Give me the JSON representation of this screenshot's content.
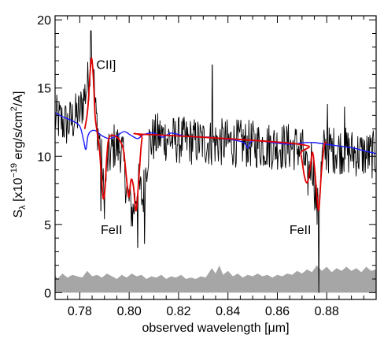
{
  "chart_data": {
    "type": "line",
    "xlabel": "observed wavelength [μm]",
    "ylabel": {
      "prefix": "S",
      "sub": "λ",
      "mid1": " [x10",
      "sup1": "−19",
      "mid2": " erg/s/cm",
      "sup2": "2",
      "suffix": "/A]"
    },
    "xlim": [
      0.77,
      0.9
    ],
    "ylim": [
      -0.5,
      20.3
    ],
    "x_ticks": [
      0.78,
      0.8,
      0.82,
      0.84,
      0.86,
      0.88
    ],
    "x_tick_labels": [
      "0.78",
      "0.80",
      "0.82",
      "0.84",
      "0.86",
      "0.88"
    ],
    "y_ticks": [
      0,
      5,
      10,
      15,
      20
    ],
    "y_tick_labels": [
      "0",
      "5",
      "10",
      "15",
      "20"
    ],
    "grid": false,
    "colors": {
      "observed": "#000000",
      "continuum_model": "#1a1aff",
      "line_model": "#e00000",
      "error": "#a6a6a6"
    },
    "annotations": [
      {
        "text": "CII]",
        "x": 0.7867,
        "y": 16.4
      },
      {
        "text": "FeII",
        "x": 0.7885,
        "y": 4.3
      },
      {
        "text": "FeII",
        "x": 0.8649,
        "y": 4.3
      }
    ],
    "series": [
      {
        "role": "observed",
        "draw": "noisy",
        "x_range": [
          0.77,
          0.9
        ],
        "anchors": [
          [
            0.77,
            12.8
          ],
          [
            0.775,
            12.3
          ],
          [
            0.78,
            13.2
          ],
          [
            0.7835,
            15.5
          ],
          [
            0.785,
            17.8
          ],
          [
            0.7865,
            13.0
          ],
          [
            0.7885,
            10.5
          ],
          [
            0.7898,
            6.8
          ],
          [
            0.7912,
            9.6
          ],
          [
            0.794,
            10.8
          ],
          [
            0.797,
            10.5
          ],
          [
            0.7995,
            7.0
          ],
          [
            0.8015,
            5.8
          ],
          [
            0.8035,
            8.0
          ],
          [
            0.8055,
            6.8
          ],
          [
            0.808,
            11.0
          ],
          [
            0.812,
            11.5
          ],
          [
            0.818,
            11.2
          ],
          [
            0.825,
            11.1
          ],
          [
            0.832,
            11.0
          ],
          [
            0.84,
            11.0
          ],
          [
            0.848,
            10.9
          ],
          [
            0.856,
            10.8
          ],
          [
            0.864,
            10.7
          ],
          [
            0.87,
            10.6
          ],
          [
            0.8722,
            8.3
          ],
          [
            0.874,
            10.0
          ],
          [
            0.8762,
            5.8
          ],
          [
            0.8785,
            10.4
          ],
          [
            0.884,
            10.5
          ],
          [
            0.89,
            10.3
          ],
          [
            0.896,
            10.1
          ],
          [
            0.9,
            10.1
          ]
        ],
        "spikes": [
          [
            0.7845,
            19.2
          ],
          [
            0.8337,
            16.7
          ],
          [
            0.8768,
            0.0
          ],
          [
            0.8803,
            13.8
          ],
          [
            0.8872,
            13.6
          ],
          [
            0.8035,
            3.3
          ],
          [
            0.7885,
            6.0
          ],
          [
            0.8062,
            3.6
          ]
        ]
      },
      {
        "role": "continuum_model",
        "draw": "smooth",
        "points": [
          [
            0.77,
            13.2
          ],
          [
            0.773,
            12.9
          ],
          [
            0.777,
            12.6
          ],
          [
            0.78,
            12.2
          ],
          [
            0.7815,
            11.2
          ],
          [
            0.7825,
            10.5
          ],
          [
            0.7835,
            11.6
          ],
          [
            0.786,
            11.9
          ],
          [
            0.789,
            11.5
          ],
          [
            0.792,
            11.3
          ],
          [
            0.795,
            11.5
          ],
          [
            0.798,
            11.8
          ],
          [
            0.801,
            11.5
          ],
          [
            0.8035,
            11.3
          ],
          [
            0.806,
            11.6
          ],
          [
            0.81,
            11.7
          ],
          [
            0.8135,
            11.4
          ],
          [
            0.817,
            11.7
          ],
          [
            0.822,
            11.5
          ],
          [
            0.827,
            11.4
          ],
          [
            0.832,
            11.4
          ],
          [
            0.837,
            11.3
          ],
          [
            0.842,
            11.2
          ],
          [
            0.8465,
            11.0
          ],
          [
            0.848,
            10.6
          ],
          [
            0.8495,
            11.1
          ],
          [
            0.854,
            11.1
          ],
          [
            0.858,
            11.0
          ],
          [
            0.863,
            10.9
          ],
          [
            0.867,
            10.9
          ],
          [
            0.871,
            11.0
          ],
          [
            0.875,
            11.0
          ],
          [
            0.879,
            10.9
          ],
          [
            0.883,
            10.8
          ],
          [
            0.887,
            10.7
          ],
          [
            0.891,
            10.6
          ],
          [
            0.895,
            10.4
          ],
          [
            0.9,
            10.2
          ]
        ]
      },
      {
        "role": "line_model",
        "draw": "smooth",
        "points": [
          [
            0.782,
            12.0
          ],
          [
            0.7832,
            13.4
          ],
          [
            0.7842,
            16.2
          ],
          [
            0.7848,
            17.2
          ],
          [
            0.7855,
            15.8
          ],
          [
            0.7862,
            13.0
          ],
          [
            0.787,
            11.8
          ],
          [
            0.788,
            10.4
          ],
          [
            0.7888,
            8.4
          ],
          [
            0.7895,
            6.9
          ],
          [
            0.7902,
            7.6
          ],
          [
            0.791,
            10.1
          ],
          [
            0.792,
            11.4
          ],
          [
            0.795,
            11.4
          ],
          [
            0.7975,
            10.6
          ],
          [
            0.7988,
            8.6
          ],
          [
            0.7998,
            7.0
          ],
          [
            0.8008,
            8.3
          ],
          [
            0.8018,
            7.7
          ],
          [
            0.8028,
            6.0
          ],
          [
            0.804,
            8.6
          ],
          [
            0.8052,
            11.3
          ],
          [
            0.807,
            11.6
          ],
          [
            0.868,
            10.9
          ],
          [
            0.8695,
            10.2
          ],
          [
            0.871,
            8.5
          ],
          [
            0.8722,
            8.1
          ],
          [
            0.8734,
            9.3
          ],
          [
            0.8742,
            10.3
          ],
          [
            0.875,
            9.3
          ],
          [
            0.876,
            7.1
          ],
          [
            0.8768,
            6.1
          ],
          [
            0.8778,
            8.7
          ],
          [
            0.879,
            10.8
          ],
          [
            0.88,
            11.0
          ]
        ]
      },
      {
        "role": "error",
        "draw": "area",
        "baseline": 0,
        "points": [
          [
            0.77,
            1.3
          ],
          [
            0.771,
            1.0
          ],
          [
            0.773,
            1.4
          ],
          [
            0.775,
            1.1
          ],
          [
            0.777,
            1.3
          ],
          [
            0.779,
            1.2
          ],
          [
            0.781,
            1.1
          ],
          [
            0.783,
            1.6
          ],
          [
            0.785,
            1.2
          ],
          [
            0.787,
            1.3
          ],
          [
            0.789,
            1.1
          ],
          [
            0.791,
            1.4
          ],
          [
            0.793,
            1.2
          ],
          [
            0.795,
            1.0
          ],
          [
            0.797,
            1.3
          ],
          [
            0.799,
            1.1
          ],
          [
            0.801,
            1.4
          ],
          [
            0.803,
            1.2
          ],
          [
            0.805,
            1.3
          ],
          [
            0.807,
            1.0
          ],
          [
            0.809,
            1.2
          ],
          [
            0.811,
            1.1
          ],
          [
            0.813,
            1.3
          ],
          [
            0.815,
            1.0
          ],
          [
            0.817,
            1.2
          ],
          [
            0.819,
            1.1
          ],
          [
            0.821,
            1.3
          ],
          [
            0.823,
            1.0
          ],
          [
            0.825,
            1.1
          ],
          [
            0.827,
            1.0
          ],
          [
            0.829,
            1.2
          ],
          [
            0.831,
            1.1
          ],
          [
            0.8335,
            1.8
          ],
          [
            0.835,
            1.4
          ],
          [
            0.8365,
            2.0
          ],
          [
            0.838,
            1.3
          ],
          [
            0.84,
            1.6
          ],
          [
            0.842,
            1.2
          ],
          [
            0.844,
            1.4
          ],
          [
            0.846,
            1.1
          ],
          [
            0.848,
            1.3
          ],
          [
            0.85,
            1.2
          ],
          [
            0.852,
            1.4
          ],
          [
            0.854,
            1.2
          ],
          [
            0.856,
            1.3
          ],
          [
            0.858,
            1.1
          ],
          [
            0.86,
            1.3
          ],
          [
            0.862,
            1.2
          ],
          [
            0.864,
            1.4
          ],
          [
            0.866,
            1.3
          ],
          [
            0.868,
            1.6
          ],
          [
            0.87,
            1.4
          ],
          [
            0.872,
            1.7
          ],
          [
            0.874,
            1.5
          ],
          [
            0.876,
            2.0
          ],
          [
            0.878,
            1.6
          ],
          [
            0.88,
            1.9
          ],
          [
            0.882,
            1.5
          ],
          [
            0.884,
            1.8
          ],
          [
            0.886,
            1.6
          ],
          [
            0.888,
            1.9
          ],
          [
            0.89,
            1.6
          ],
          [
            0.892,
            1.8
          ],
          [
            0.894,
            1.5
          ],
          [
            0.896,
            1.9
          ],
          [
            0.898,
            1.6
          ],
          [
            0.9,
            1.7
          ]
        ]
      }
    ]
  }
}
